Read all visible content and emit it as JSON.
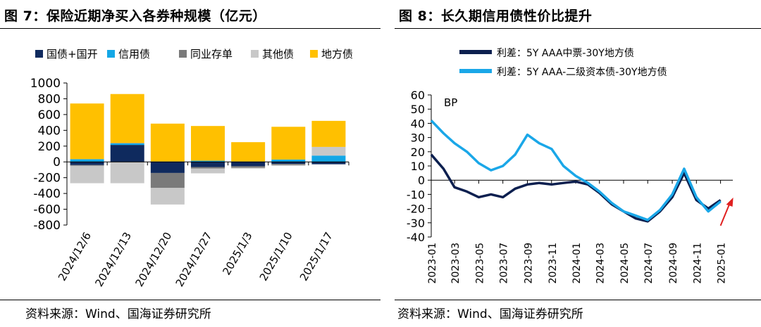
{
  "left": {
    "title": "图 7：保险近期净买入各券种规模（亿元）",
    "source": "资料来源：Wind、国海证券研究所"
  },
  "right": {
    "title": "图 8：长久期信用债性价比提升",
    "source": "资料来源：Wind、国海证券研究所"
  },
  "chart_data": [
    {
      "type": "bar",
      "stacked": true,
      "categories": [
        "2024/12/6",
        "2024/12/13",
        "2024/12/20",
        "2024/12/27",
        "2025/1/3",
        "2025/1/10",
        "2025/1/17"
      ],
      "ylim": [
        -800,
        1000
      ],
      "yticks": [
        1000,
        800,
        600,
        400,
        200,
        0,
        -200,
        -400,
        -600,
        -800
      ],
      "legend_position": "top",
      "series": [
        {
          "name": "国债+国开",
          "color": "#0f2a5e",
          "values": [
            -40,
            215,
            -140,
            -65,
            -55,
            -25,
            -30
          ]
        },
        {
          "name": "信用债",
          "color": "#14a7e6",
          "values": [
            35,
            20,
            5,
            15,
            5,
            30,
            80
          ]
        },
        {
          "name": "同业存单",
          "color": "#7a7a7a",
          "values": [
            -10,
            5,
            -190,
            -20,
            -20,
            -15,
            0
          ]
        },
        {
          "name": "其他债",
          "color": "#c8c8c8",
          "values": [
            -220,
            -270,
            -210,
            -60,
            -10,
            -10,
            110
          ]
        },
        {
          "name": "地方债",
          "color": "#ffc000",
          "values": [
            705,
            620,
            480,
            440,
            245,
            415,
            330
          ]
        }
      ]
    },
    {
      "type": "line",
      "ylim": [
        -40,
        60
      ],
      "yticks": [
        60,
        50,
        40,
        30,
        20,
        10,
        0,
        -10,
        -20,
        -30,
        -40
      ],
      "y_unit": "BP",
      "x_tick_labels": [
        "2023-01",
        "2023-03",
        "2023-05",
        "2023-07",
        "2023-09",
        "2023-11",
        "2024-01",
        "2024-03",
        "2024-05",
        "2024-07",
        "2024-09",
        "2024-11",
        "2025-01"
      ],
      "legend_position": "top",
      "annotation": "red arrow pointing up-right at series end",
      "series": [
        {
          "name": "利差：5Y AAA中票-30Y地方债",
          "color": "#0c1f4f",
          "x": [
            "2023-01",
            "2023-02",
            "2023-03",
            "2023-04",
            "2023-05",
            "2023-06",
            "2023-07",
            "2023-08",
            "2023-09",
            "2023-10",
            "2023-11",
            "2023-12",
            "2024-01",
            "2024-02",
            "2024-03",
            "2024-04",
            "2024-05",
            "2024-06",
            "2024-07",
            "2024-08",
            "2024-09",
            "2024-10",
            "2024-11",
            "2024-12",
            "2025-01"
          ],
          "values": [
            18,
            8,
            -5,
            -8,
            -12,
            -10,
            -12,
            -6,
            -3,
            -2,
            -3,
            -2,
            -1,
            -3,
            -9,
            -17,
            -22,
            -27,
            -29,
            -22,
            -12,
            5,
            -14,
            -20,
            -14
          ]
        },
        {
          "name": "利差：5Y AAA-二级资本债-30Y地方债",
          "color": "#1aa7e8",
          "x": [
            "2023-01",
            "2023-02",
            "2023-03",
            "2023-04",
            "2023-05",
            "2023-06",
            "2023-07",
            "2023-08",
            "2023-09",
            "2023-10",
            "2023-11",
            "2023-12",
            "2024-01",
            "2024-02",
            "2024-03",
            "2024-04",
            "2024-05",
            "2024-06",
            "2024-07",
            "2024-08",
            "2024-09",
            "2024-10",
            "2024-11",
            "2024-12",
            "2025-01"
          ],
          "values": [
            42,
            33,
            26,
            20,
            12,
            7,
            10,
            18,
            32,
            26,
            22,
            10,
            3,
            -2,
            -8,
            -16,
            -22,
            -25,
            -28,
            -21,
            -10,
            8,
            -12,
            -22,
            -15
          ]
        }
      ]
    }
  ]
}
